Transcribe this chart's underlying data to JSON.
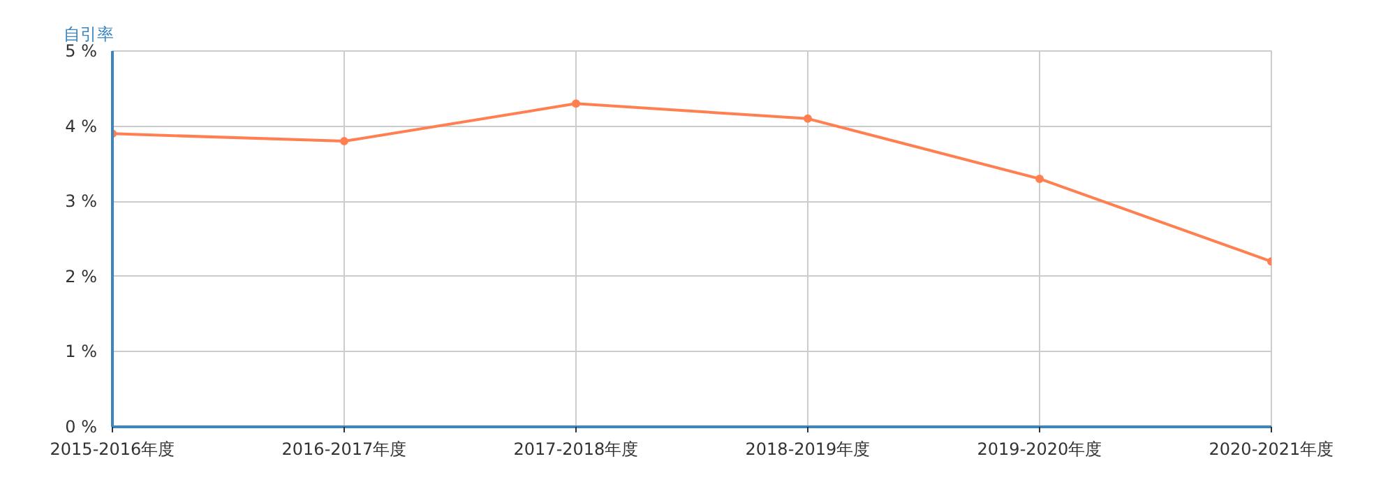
{
  "chart_data": {
    "type": "line",
    "ylabel": "自引率",
    "categories": [
      "2015-2016年度",
      "2016-2017年度",
      "2017-2018年度",
      "2018-2019年度",
      "2019-2020年度",
      "2020-2021年度"
    ],
    "series": [
      {
        "color": "#ff7f50",
        "values": [
          3.9,
          3.8,
          4.3,
          4.1,
          3.3,
          2.2
        ]
      }
    ],
    "ylim": [
      0,
      5
    ],
    "yticks": [
      {
        "value": 0,
        "label": "0 %"
      },
      {
        "value": 1,
        "label": "1 %"
      },
      {
        "value": 2,
        "label": "2 %"
      },
      {
        "value": 3,
        "label": "3 %"
      },
      {
        "value": 4,
        "label": "4 %"
      },
      {
        "value": 5,
        "label": "5 %"
      }
    ],
    "grid": true,
    "marker": "circle",
    "line_style": "solid"
  }
}
